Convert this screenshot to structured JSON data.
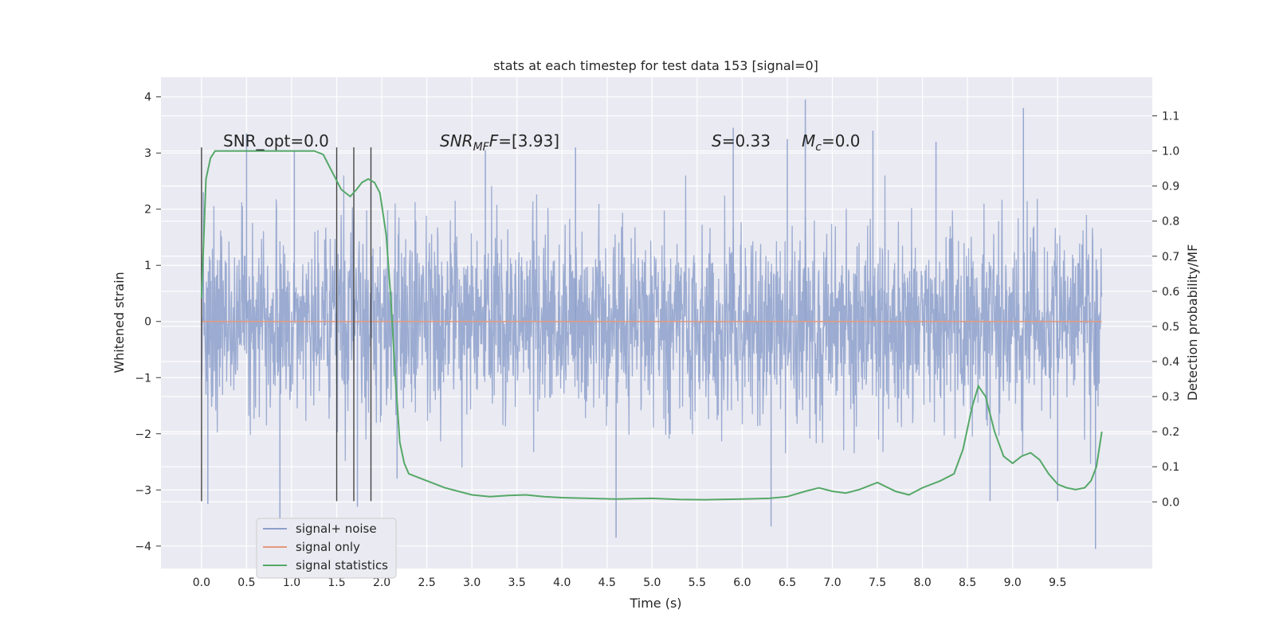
{
  "chart_data": {
    "type": "line",
    "title": "stats at each timestep for test data 153 [signal=0]",
    "xlabel": "Time (s)",
    "ylabel": "Whitened strain",
    "y2label": "Detection probability/MF",
    "xlim": [
      -0.45,
      10.55
    ],
    "ylim": [
      -4.4,
      4.35
    ],
    "y2lim": [
      -0.19,
      1.21
    ],
    "xticks": [
      "0.0",
      "0.5",
      "1.0",
      "1.5",
      "2.0",
      "2.5",
      "3.0",
      "3.5",
      "4.0",
      "4.5",
      "5.0",
      "5.5",
      "6.0",
      "6.5",
      "7.0",
      "7.5",
      "8.0",
      "8.5",
      "9.0",
      "9.5"
    ],
    "yticks": [
      "4",
      "3",
      "2",
      "1",
      "0",
      "−1",
      "−2",
      "−3",
      "−4"
    ],
    "y2ticks": [
      "1.1",
      "1.0",
      "0.9",
      "0.8",
      "0.7",
      "0.6",
      "0.5",
      "0.4",
      "0.3",
      "0.2",
      "0.1",
      "0.0"
    ],
    "grid": true,
    "legend_position": "lower-left",
    "annotations": {
      "snr_opt": "SNR_opt=0.0",
      "snr_mf_prefix": "SNR",
      "snr_mf_sub": "MF",
      "snr_mf_suffix": "=[3.93]",
      "s_prefix": "S",
      "s_suffix": "=0.33",
      "mc_prefix": "M",
      "mc_sub": "c",
      "mc_suffix": "=0.0"
    },
    "vertical_lines_x": [
      0.0,
      1.5,
      1.69,
      1.88
    ],
    "vertical_lines_range": [
      -3.2,
      3.1
    ],
    "series": [
      {
        "name": "signal+ noise",
        "color": "#8da0cb",
        "x_range": [
          0.0,
          9.99
        ],
        "envelope_typical_max": [
          1.2,
          2.4
        ],
        "envelope_typical_min": [
          -1.3,
          -2.4
        ],
        "outlier_peaks": [
          {
            "x": 0.02,
            "y": 2.3
          },
          {
            "x": 0.07,
            "y": -3.25
          },
          {
            "x": 0.5,
            "y": 3.35
          },
          {
            "x": 0.87,
            "y": -3.6
          },
          {
            "x": 1.03,
            "y": 3.05
          },
          {
            "x": 1.73,
            "y": -3.3
          },
          {
            "x": 2.17,
            "y": -2.8
          },
          {
            "x": 3.15,
            "y": 3.05
          },
          {
            "x": 4.15,
            "y": 3.1
          },
          {
            "x": 4.6,
            "y": -3.85
          },
          {
            "x": 5.9,
            "y": 3.45
          },
          {
            "x": 6.32,
            "y": -3.65
          },
          {
            "x": 6.5,
            "y": 3.25
          },
          {
            "x": 6.7,
            "y": 3.95
          },
          {
            "x": 7.45,
            "y": 3.4
          },
          {
            "x": 8.15,
            "y": 3.2
          },
          {
            "x": 8.75,
            "y": -3.2
          },
          {
            "x": 9.12,
            "y": 3.8
          },
          {
            "x": 9.5,
            "y": -3.2
          },
          {
            "x": 9.92,
            "y": -4.05
          }
        ]
      },
      {
        "name": "signal only",
        "color": "#e49a7c",
        "x": [
          0.0,
          9.99
        ],
        "y": [
          0.0,
          0.0
        ]
      },
      {
        "name": "signal statistics",
        "color": "#55a868",
        "axis": "right",
        "x": [
          0.0,
          0.05,
          0.1,
          0.15,
          0.3,
          0.5,
          0.8,
          1.1,
          1.25,
          1.35,
          1.45,
          1.55,
          1.65,
          1.72,
          1.78,
          1.85,
          1.92,
          1.98,
          2.05,
          2.1,
          2.15,
          2.2,
          2.25,
          2.3,
          2.4,
          2.5,
          2.7,
          3.0,
          3.2,
          3.4,
          3.6,
          3.8,
          4.0,
          4.3,
          4.6,
          4.8,
          5.0,
          5.3,
          5.6,
          6.0,
          6.3,
          6.5,
          6.7,
          6.85,
          7.0,
          7.15,
          7.3,
          7.5,
          7.7,
          7.85,
          8.0,
          8.2,
          8.35,
          8.45,
          8.55,
          8.62,
          8.7,
          8.8,
          8.9,
          9.0,
          9.1,
          9.2,
          9.3,
          9.4,
          9.5,
          9.6,
          9.7,
          9.8,
          9.87,
          9.93,
          9.99
        ],
        "y": [
          0.58,
          0.92,
          0.98,
          1.0,
          1.0,
          1.0,
          1.0,
          1.0,
          1.0,
          0.99,
          0.94,
          0.89,
          0.87,
          0.89,
          0.91,
          0.92,
          0.91,
          0.88,
          0.76,
          0.58,
          0.36,
          0.17,
          0.11,
          0.08,
          0.07,
          0.06,
          0.04,
          0.02,
          0.015,
          0.018,
          0.02,
          0.015,
          0.012,
          0.01,
          0.008,
          0.009,
          0.01,
          0.007,
          0.006,
          0.008,
          0.01,
          0.015,
          0.03,
          0.04,
          0.03,
          0.025,
          0.035,
          0.055,
          0.03,
          0.02,
          0.04,
          0.06,
          0.08,
          0.15,
          0.27,
          0.33,
          0.3,
          0.2,
          0.13,
          0.11,
          0.13,
          0.14,
          0.12,
          0.08,
          0.05,
          0.04,
          0.035,
          0.04,
          0.06,
          0.1,
          0.2
        ]
      }
    ]
  }
}
